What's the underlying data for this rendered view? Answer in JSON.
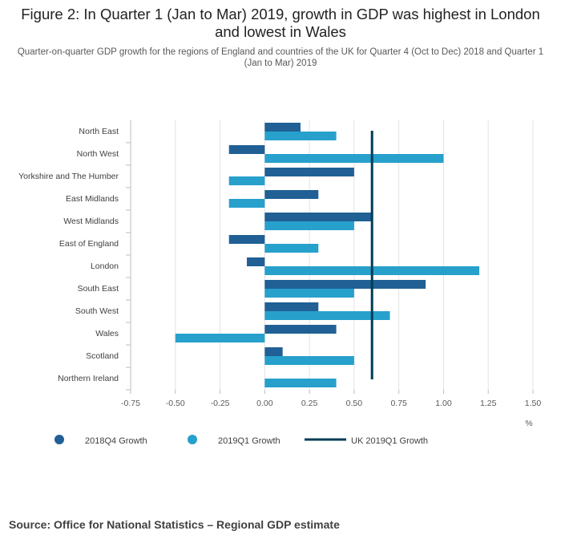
{
  "chart_data": {
    "type": "bar",
    "orientation": "horizontal",
    "title": "Figure 2: In Quarter 1 (Jan to Mar) 2019, growth in GDP was highest in London and lowest in Wales",
    "subtitle": "Quarter-on-quarter GDP growth for the regions of England and countries of the UK for Quarter 4 (Oct to Dec) 2018 and Quarter 1 (Jan to Mar) 2019",
    "categories": [
      "North East",
      "North West",
      "Yorkshire and The Humber",
      "East Midlands",
      "West Midlands",
      "East of England",
      "London",
      "South East",
      "South West",
      "Wales",
      "Scotland",
      "Northern Ireland"
    ],
    "series": [
      {
        "name": "2018Q4 Growth",
        "color": "#206095",
        "values": [
          0.2,
          -0.2,
          0.5,
          0.3,
          0.6,
          -0.2,
          -0.1,
          0.9,
          0.3,
          0.4,
          0.1,
          0.0
        ]
      },
      {
        "name": "2019Q1 Growth",
        "color": "#27a0cc",
        "values": [
          0.4,
          1.0,
          -0.2,
          -0.2,
          0.5,
          0.3,
          1.2,
          0.5,
          0.7,
          -0.5,
          0.5,
          0.4
        ]
      }
    ],
    "reference_line": {
      "name": "UK 2019Q1 Growth",
      "value": 0.6,
      "color": "#003c57"
    },
    "xlim": [
      -0.75,
      1.5
    ],
    "xticks": [
      -0.75,
      -0.5,
      -0.25,
      0.0,
      0.25,
      0.5,
      0.75,
      1.0,
      1.25,
      1.5
    ],
    "tick_labels": [
      "-0.75",
      "-0.50",
      "-0.25",
      "0.00",
      "0.25",
      "0.50",
      "0.75",
      "1.00",
      "1.25",
      "1.50"
    ],
    "xlabel": "%",
    "grid": true
  },
  "source": "Source: Office for National Statistics – Regional GDP estimate"
}
